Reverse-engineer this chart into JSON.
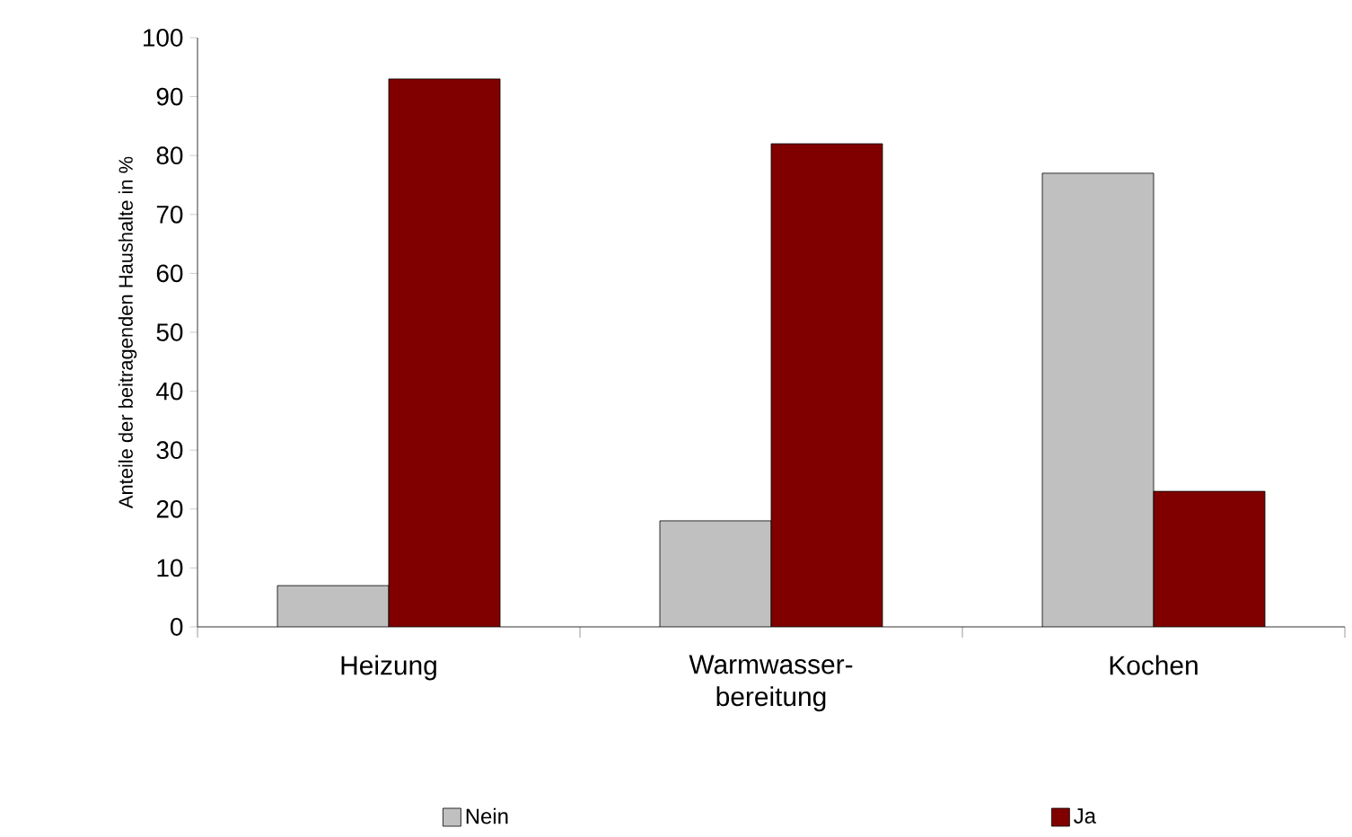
{
  "chart_data": {
    "type": "bar",
    "ylabel": "Anteile der beitragenden Haushalte in %",
    "categories": [
      "Heizung",
      "Warmwasser-bereitung",
      "Kochen"
    ],
    "series": [
      {
        "name": "Nein",
        "color": "#c0c0c0",
        "values": [
          7,
          18,
          77
        ]
      },
      {
        "name": "Ja",
        "color": "#800000",
        "values": [
          93,
          82,
          23
        ]
      }
    ],
    "ylim": [
      0,
      100
    ],
    "yticks": [
      0,
      10,
      20,
      30,
      40,
      50,
      60,
      70,
      80,
      90,
      100
    ],
    "legend": "bottom"
  }
}
